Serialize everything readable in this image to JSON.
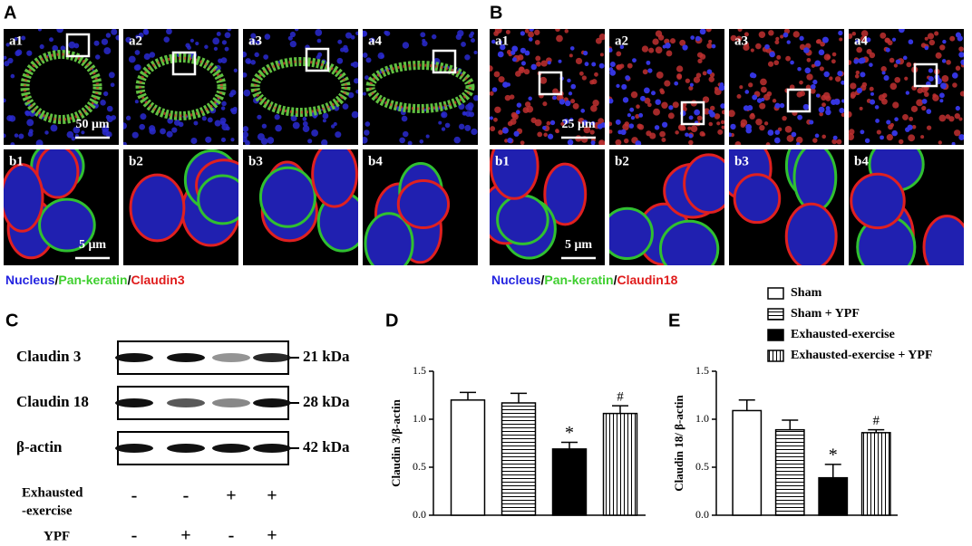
{
  "panel_A": {
    "label": "A",
    "top_labels": [
      "a1",
      "a2",
      "a3",
      "a4"
    ],
    "bottom_labels": [
      "b1",
      "b2",
      "b3",
      "b4"
    ],
    "scale_top": "50 μm",
    "scale_bottom": "5 μm",
    "caption": [
      {
        "text": "Nucleus",
        "color": "#2323e0"
      },
      {
        "text": "/",
        "color": "#000000"
      },
      {
        "text": "Pan-keratin",
        "color": "#3fcf2f"
      },
      {
        "text": "/",
        "color": "#000000"
      },
      {
        "text": "Claudin3",
        "color": "#e01c1c"
      }
    ]
  },
  "panel_B": {
    "label": "B",
    "top_labels": [
      "a1",
      "a2",
      "a3",
      "a4"
    ],
    "bottom_labels": [
      "b1",
      "b2",
      "b3",
      "b4"
    ],
    "scale_top": "25 μm",
    "scale_bottom": "5 μm",
    "caption": [
      {
        "text": "Nucleus",
        "color": "#2323e0"
      },
      {
        "text": "/",
        "color": "#000000"
      },
      {
        "text": "Pan-keratin",
        "color": "#3fcf2f"
      },
      {
        "text": "/",
        "color": "#000000"
      },
      {
        "text": "Claudin18",
        "color": "#e01c1c"
      }
    ]
  },
  "panel_C": {
    "label": "C",
    "blots": [
      {
        "name": "Claudin 3",
        "size": "21 kDa"
      },
      {
        "name": "Claudin 18",
        "size": "28 kDa"
      },
      {
        "name": "β-actin",
        "size": "42 kDa"
      }
    ],
    "conditions": [
      {
        "name": [
          "Exhausted",
          "-exercise"
        ],
        "signs": [
          "-",
          "-",
          "+",
          "+"
        ]
      },
      {
        "name": [
          "YPF"
        ],
        "signs": [
          "-",
          "+",
          "-",
          "+"
        ]
      }
    ]
  },
  "legend": {
    "items": [
      {
        "name": "Sham",
        "pattern": "white"
      },
      {
        "name": "Sham + YPF",
        "pattern": "horizontal"
      },
      {
        "name": "Exhausted-exercise",
        "pattern": "black"
      },
      {
        "name": "Exhausted-exercise + YPF",
        "pattern": "vertical"
      }
    ]
  },
  "chart_data": [
    {
      "type": "bar",
      "title": "D",
      "y_label": "Claudin 3/β-actin",
      "categories": [
        null,
        null,
        null,
        null
      ],
      "values": [
        1.2,
        1.17,
        0.69,
        1.06
      ],
      "errors": [
        0.08,
        0.1,
        0.07,
        0.08
      ],
      "annotations": [
        null,
        null,
        "*",
        "#"
      ],
      "ylim": [
        0,
        1.5
      ],
      "yticks": [
        {
          "value": 0,
          "label": "0.0"
        },
        0.5,
        {
          "value": 1,
          "label": "1.0"
        },
        1.5
      ]
    },
    {
      "type": "bar",
      "title": "E",
      "y_label": "Claudin 18/ β-actin",
      "categories": [
        null,
        null,
        null,
        null
      ],
      "values": [
        1.09,
        0.89,
        0.39,
        0.86
      ],
      "errors": [
        0.11,
        0.1,
        0.14,
        0.03
      ],
      "annotations": [
        null,
        null,
        "*",
        "#"
      ],
      "ylim": [
        0,
        1.5
      ],
      "yticks": [
        {
          "value": 0,
          "label": "0.0"
        },
        0.5,
        {
          "value": 1,
          "label": "1.0"
        },
        1.5
      ]
    }
  ]
}
